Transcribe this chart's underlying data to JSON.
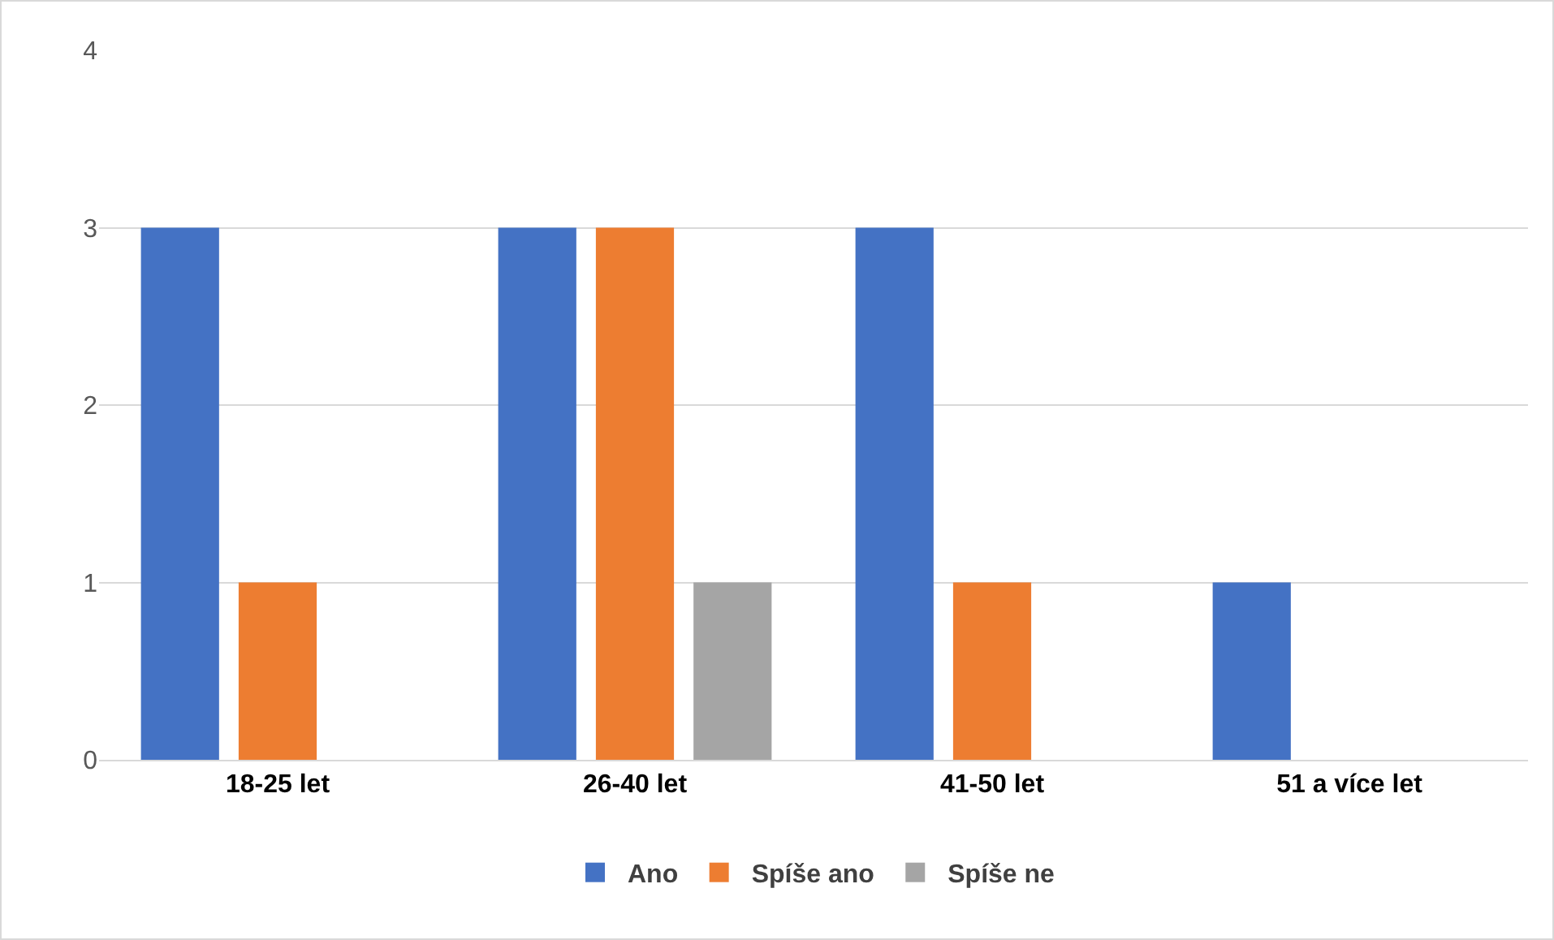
{
  "chart_data": {
    "type": "bar",
    "categories": [
      "18-25 let",
      "26-40 let",
      "41-50 let",
      "51 a více let"
    ],
    "series": [
      {
        "name": "Ano",
        "color": "#4472c4",
        "values": [
          3,
          3,
          3,
          1
        ]
      },
      {
        "name": "Spíše ano",
        "color": "#ed7d31",
        "values": [
          1,
          3,
          1,
          0
        ]
      },
      {
        "name": "Spíše ne",
        "color": "#a5a5a5",
        "values": [
          0,
          1,
          0,
          0
        ]
      }
    ],
    "ylim": [
      0,
      4
    ],
    "yticks": [
      0,
      1,
      2,
      3,
      4
    ],
    "grid": "y",
    "legend": "bottom"
  }
}
